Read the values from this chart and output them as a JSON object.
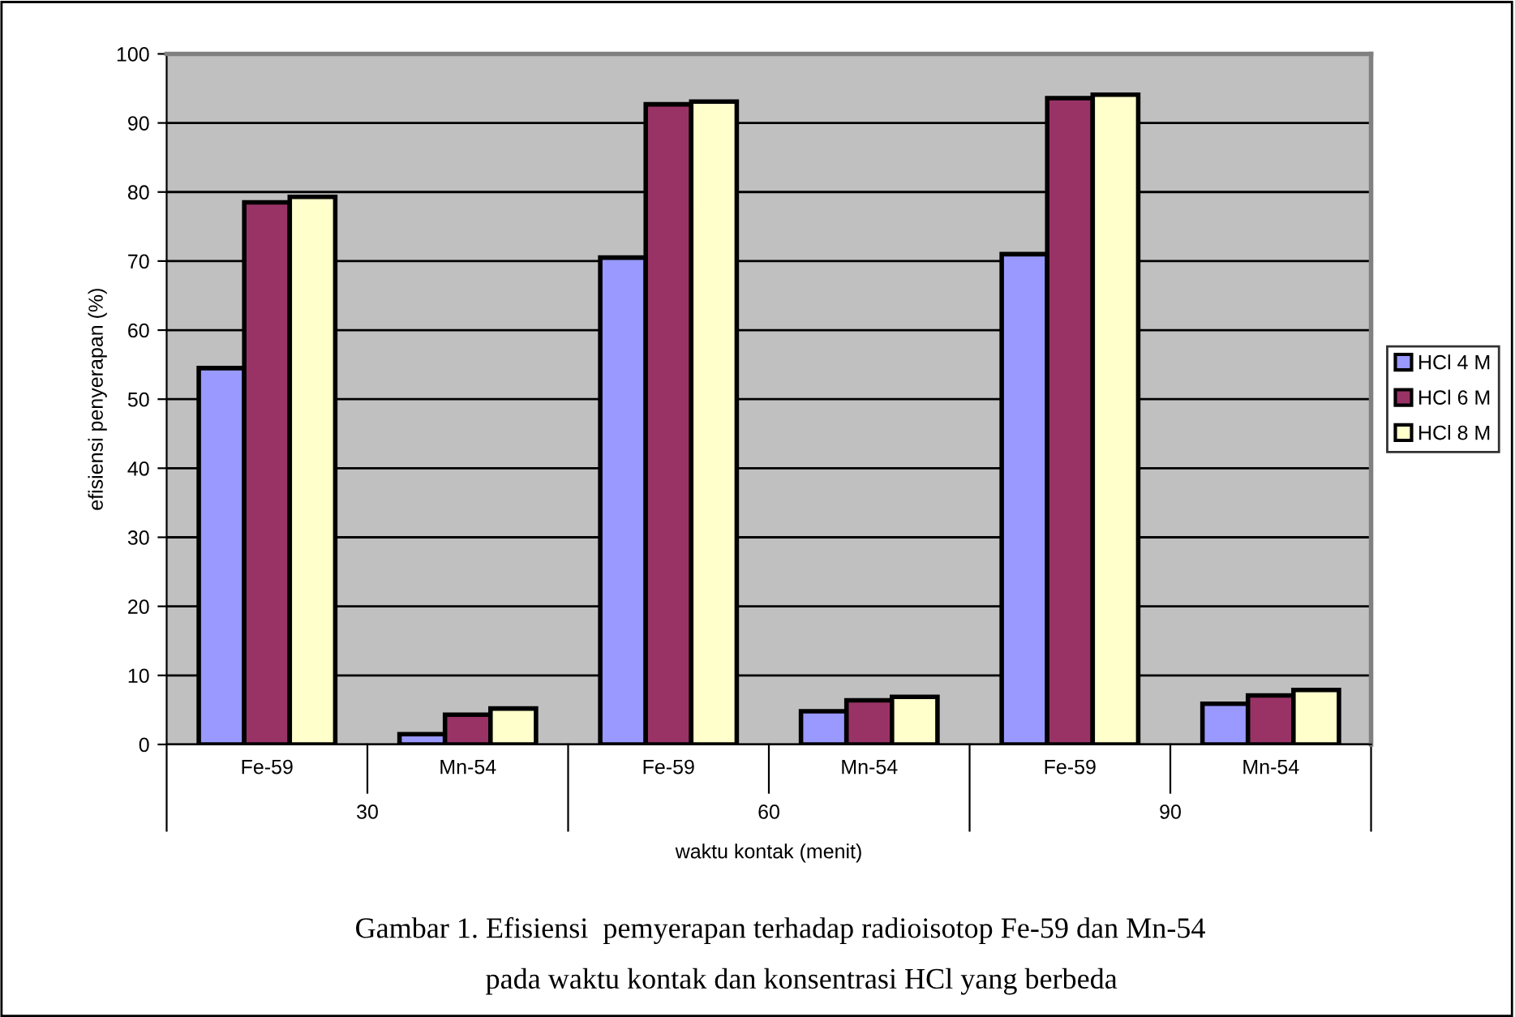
{
  "chart_data": {
    "type": "bar",
    "categories": [
      "Fe-59",
      "Mn-54",
      "Fe-59",
      "Mn-54",
      "Fe-59",
      "Mn-54"
    ],
    "series": [
      {
        "name": "HCl 4 M",
        "color": "#9999ff",
        "values": [
          54.5,
          1.5,
          70.5,
          4.8,
          71.0,
          5.9
        ]
      },
      {
        "name": "HCl 6 M",
        "color": "#993366",
        "values": [
          78.5,
          4.3,
          92.7,
          6.4,
          93.6,
          7.1
        ]
      },
      {
        "name": "HCl 8 M",
        "color": "#ffffcc",
        "values": [
          79.3,
          5.2,
          93.1,
          6.9,
          94.1,
          7.9
        ]
      }
    ],
    "xlabel": "waktu kontak (menit)",
    "ylabel": "efisiensi penyerapan (%)",
    "ylim": [
      0,
      100
    ],
    "yticks": [
      0,
      10,
      20,
      30,
      40,
      50,
      60,
      70,
      80,
      90,
      100
    ],
    "grid": "y",
    "legend": "right",
    "annotations": [
      "30",
      "60",
      "90",
      "Gambar 1. Efisiensi  pemyerapan terhadap radioisotop Fe-59 dan Mn-54",
      "pada waktu kontak dan konsentrasi HCl yang berbeda"
    ]
  }
}
